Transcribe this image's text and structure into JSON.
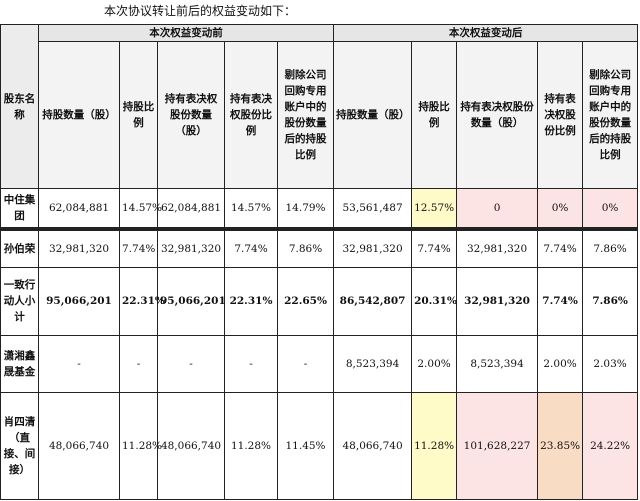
{
  "intro": "本次协议转让前后的权益变动如下：",
  "header": {
    "corner": "股东名称",
    "before_group": "本次权益变动前",
    "after_group": "本次权益变动后",
    "cols": [
      "持股数量（股）",
      "持股比例",
      "持有表决权股份数量（股）",
      "持有表决权股份比例",
      "剔除公司回购专用账户中的股份数量后的持股比例"
    ]
  },
  "rows": [
    {
      "name": "中住集团",
      "before": [
        "62,084,881",
        "14.57%",
        "62,084,881",
        "14.57%",
        "14.79%"
      ],
      "after": [
        "53,561,487",
        "12.57%",
        "0",
        "0%",
        "0%"
      ]
    },
    {
      "name": "孙伯荣",
      "before": [
        "32,981,320",
        "7.74%",
        "32,981,320",
        "7.74%",
        "7.86%"
      ],
      "after": [
        "32,981,320",
        "7.74%",
        "32,981,320",
        "7.74%",
        "7.86%"
      ]
    },
    {
      "name": "一致行动人小计",
      "before": [
        "95,066,201",
        "22.31%",
        "95,066,201",
        "22.31%",
        "22.65%"
      ],
      "after": [
        "86,542,807",
        "20.31%",
        "32,981,320",
        "7.74%",
        "7.86%"
      ]
    },
    {
      "name": "潇湘鑫晟基金",
      "before": [
        "-",
        "-",
        "-",
        "-",
        "-"
      ],
      "after": [
        "8,523,394",
        "2.00%",
        "8,523,394",
        "2.00%",
        "2.03%"
      ]
    },
    {
      "name": "肖四清（直接、间接）",
      "before": [
        "48,066,740",
        "11.28%",
        "48,066,740",
        "11.28%",
        "11.45%"
      ],
      "after": [
        "48,066,740",
        "11.28%",
        "101,628,227",
        "23.85%",
        "24.22%"
      ]
    }
  ],
  "highlight_colors": {
    "yellow": "#fffbc8",
    "pink": "#fce4e4",
    "orange": "#f9dcc4"
  }
}
